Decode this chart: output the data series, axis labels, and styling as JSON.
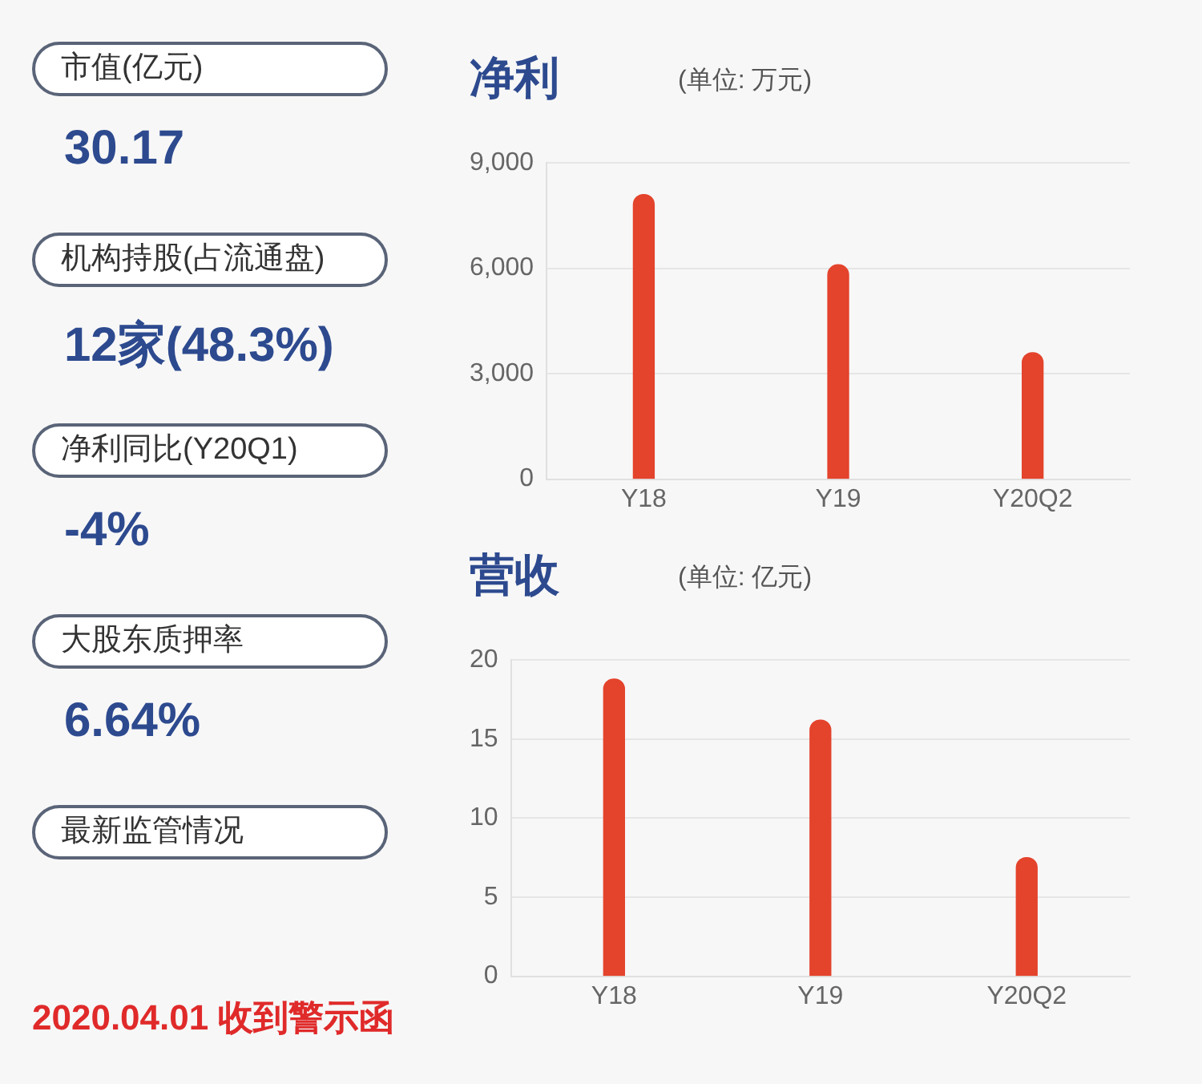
{
  "chart_data": [
    {
      "type": "other",
      "annotations": [
        "市值(亿元)",
        "30.17",
        "机构持股(占流通盘)",
        "12家(48.3%)",
        "净利同比(Y20Q1)",
        "-4%",
        "大股东质押率",
        "6.64%",
        "最新监管情况",
        "2020.04.01 收到警示函"
      ]
    },
    {
      "type": "bar",
      "title": "净利",
      "subtitle": "(单位: 万元)",
      "categories": [
        "Y18",
        "Y19",
        "Y20Q2"
      ],
      "values": [
        8100,
        6100,
        3600
      ],
      "color": "#e4432c",
      "ylim": [
        0,
        9000
      ],
      "yticks": [
        0,
        {
          "value": 3000,
          "label": "3,000"
        },
        {
          "value": 6000,
          "label": "6,000"
        },
        {
          "value": 9000,
          "label": "9,000"
        }
      ],
      "grid": "y"
    },
    {
      "type": "bar",
      "title": "营收",
      "subtitle": "(单位: 亿元)",
      "categories": [
        "Y18",
        "Y19",
        "Y20Q2"
      ],
      "values": [
        18.8,
        16.2,
        7.5
      ],
      "color": "#e4432c",
      "ylim": [
        0,
        20
      ],
      "yticks": [
        0,
        5,
        10,
        15,
        20
      ],
      "grid": "y"
    }
  ]
}
